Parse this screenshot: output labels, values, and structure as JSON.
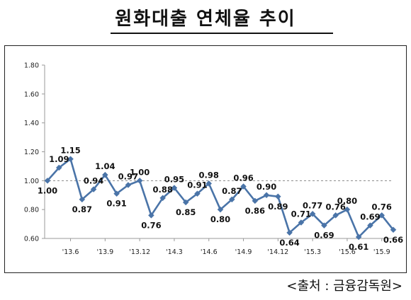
{
  "title": "원화대출 연체율 추이",
  "source": "<출처 : 금융감독원>",
  "colors": {
    "line": "#4a74a8",
    "reference": "#888888",
    "text": "#111111"
  },
  "chart_data": {
    "type": "line",
    "title": "원화대출 연체율 추이",
    "ylim": [
      0.6,
      1.8
    ],
    "yticks": [
      "0.60",
      "0.80",
      "1.00",
      "1.20",
      "1.40",
      "1.60",
      "1.80"
    ],
    "reference_line": 1.0,
    "xtick_labels": [
      "'13.6",
      "'13.9",
      "'13.12",
      "'14.3",
      "'14.6",
      "'14.9",
      "'14.12",
      "'15.3",
      "'15.6",
      "'15.9"
    ],
    "xtick_index": [
      2,
      5,
      8,
      11,
      14,
      17,
      20,
      23,
      26,
      29
    ],
    "series": [
      {
        "values": [
          1.0,
          1.09,
          1.15,
          0.87,
          0.94,
          1.04,
          0.91,
          0.97,
          1.0,
          0.76,
          0.88,
          0.95,
          0.85,
          0.91,
          0.98,
          0.8,
          0.87,
          0.96,
          0.86,
          0.9,
          0.89,
          0.64,
          0.71,
          0.77,
          0.69,
          0.76,
          0.8,
          0.61,
          0.69,
          0.76,
          0.66
        ],
        "labels": [
          "1.00",
          "1.09",
          "1.15",
          "0.87",
          "0.94",
          "1.04",
          "0.91",
          "0.97",
          "1.00",
          "0.76",
          "0.88",
          "0.95",
          "0.85",
          "0.91",
          "0.98",
          "0.80",
          "0.87",
          "0.96",
          "0.86",
          "0.90",
          "0.89",
          "0.64",
          "0.71",
          "0.77",
          "0.69",
          "0.76",
          "0.80",
          "0.61",
          "0.69",
          "0.76",
          "0.66"
        ]
      }
    ]
  }
}
